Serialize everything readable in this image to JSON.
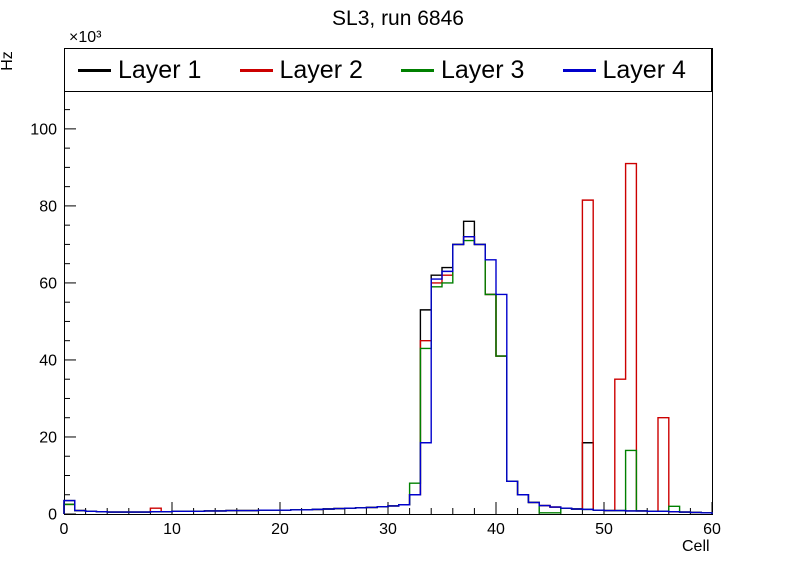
{
  "title": "SL3, run 6846",
  "chart_data": {
    "type": "line",
    "style": "step-histogram",
    "title": "SL3, run 6846",
    "xlabel": "Cell",
    "ylabel": "Hz",
    "y_multiplier": "×10³",
    "xlim": [
      0,
      60
    ],
    "ylim": [
      0,
      121
    ],
    "xticks": [
      0,
      10,
      20,
      30,
      40,
      50,
      60
    ],
    "yticks": [
      0,
      20,
      40,
      60,
      80,
      100
    ],
    "legend_position": "top",
    "grid": false,
    "bin_width": 1,
    "bins_start": 0,
    "bins_count": 60,
    "series": [
      {
        "name": "Layer 1",
        "color": "#000000",
        "values": [
          3.5,
          0.9,
          0.7,
          0.6,
          0.5,
          0.5,
          0.5,
          0.5,
          0.6,
          0.6,
          0.7,
          0.7,
          0.7,
          0.8,
          0.8,
          0.9,
          0.9,
          0.9,
          1.0,
          1.0,
          1.0,
          1.1,
          1.1,
          1.2,
          1.3,
          1.4,
          1.5,
          1.6,
          1.7,
          1.9,
          2.1,
          2.4,
          5.0,
          53,
          62,
          64,
          70,
          76,
          70,
          57,
          41,
          8.5,
          5,
          3,
          2.2,
          1.8,
          1.5,
          1.3,
          18.5,
          1.0,
          0.9,
          0.9,
          0.8,
          0.8,
          0.7,
          0.7,
          0.6,
          0.5,
          0.4,
          0.3
        ]
      },
      {
        "name": "Layer 2",
        "color": "#cc0000",
        "values": [
          2.5,
          0.9,
          0.7,
          0.6,
          0.5,
          0.5,
          0.5,
          0.5,
          1.5,
          0.6,
          0.7,
          0.7,
          0.7,
          0.8,
          0.8,
          0.9,
          0.9,
          0.9,
          1.0,
          1.0,
          1.0,
          1.1,
          1.1,
          1.2,
          1.3,
          1.4,
          1.5,
          1.6,
          1.7,
          1.9,
          2.1,
          2.4,
          5.0,
          45,
          60,
          62,
          70,
          72,
          70,
          57,
          41,
          8.5,
          5,
          3,
          2.2,
          1.8,
          1.5,
          1.3,
          81.5,
          1.0,
          0.9,
          35,
          91,
          0.8,
          0.7,
          25,
          0.6,
          0.5,
          0.4,
          0.3
        ]
      },
      {
        "name": "Layer 3",
        "color": "#008000",
        "values": [
          2.5,
          0.9,
          0.7,
          0.6,
          0.5,
          0.5,
          0.5,
          0.5,
          0.6,
          0.6,
          0.7,
          0.7,
          0.7,
          0.8,
          0.8,
          0.9,
          0.9,
          0.9,
          1.0,
          1.0,
          1.0,
          1.1,
          1.1,
          1.2,
          1.3,
          1.4,
          1.5,
          1.6,
          1.7,
          1.9,
          2.1,
          2.4,
          8.0,
          43,
          59,
          60,
          70,
          71,
          70,
          57,
          41,
          8.5,
          5,
          3,
          0.3,
          0.3,
          1.5,
          1.3,
          1.2,
          1.0,
          0.9,
          0.9,
          16.5,
          0.8,
          0.7,
          0.7,
          2.0,
          0.5,
          0.4,
          0.3
        ]
      },
      {
        "name": "Layer 4",
        "color": "#0000cc",
        "values": [
          3.5,
          0.9,
          0.7,
          0.6,
          0.5,
          0.5,
          0.5,
          0.5,
          0.6,
          0.6,
          0.7,
          0.7,
          0.7,
          0.8,
          0.8,
          0.9,
          0.9,
          0.9,
          1.0,
          1.0,
          1.0,
          1.1,
          1.1,
          1.2,
          1.3,
          1.4,
          1.5,
          1.6,
          1.7,
          1.9,
          2.1,
          2.4,
          5.0,
          18.5,
          61,
          63,
          70,
          72,
          70,
          66,
          57,
          8.5,
          5,
          3,
          2.2,
          1.8,
          1.5,
          1.3,
          1.2,
          1.0,
          0.9,
          0.9,
          0.8,
          0.8,
          0.7,
          0.7,
          0.6,
          0.5,
          0.4,
          0.3
        ]
      }
    ]
  }
}
